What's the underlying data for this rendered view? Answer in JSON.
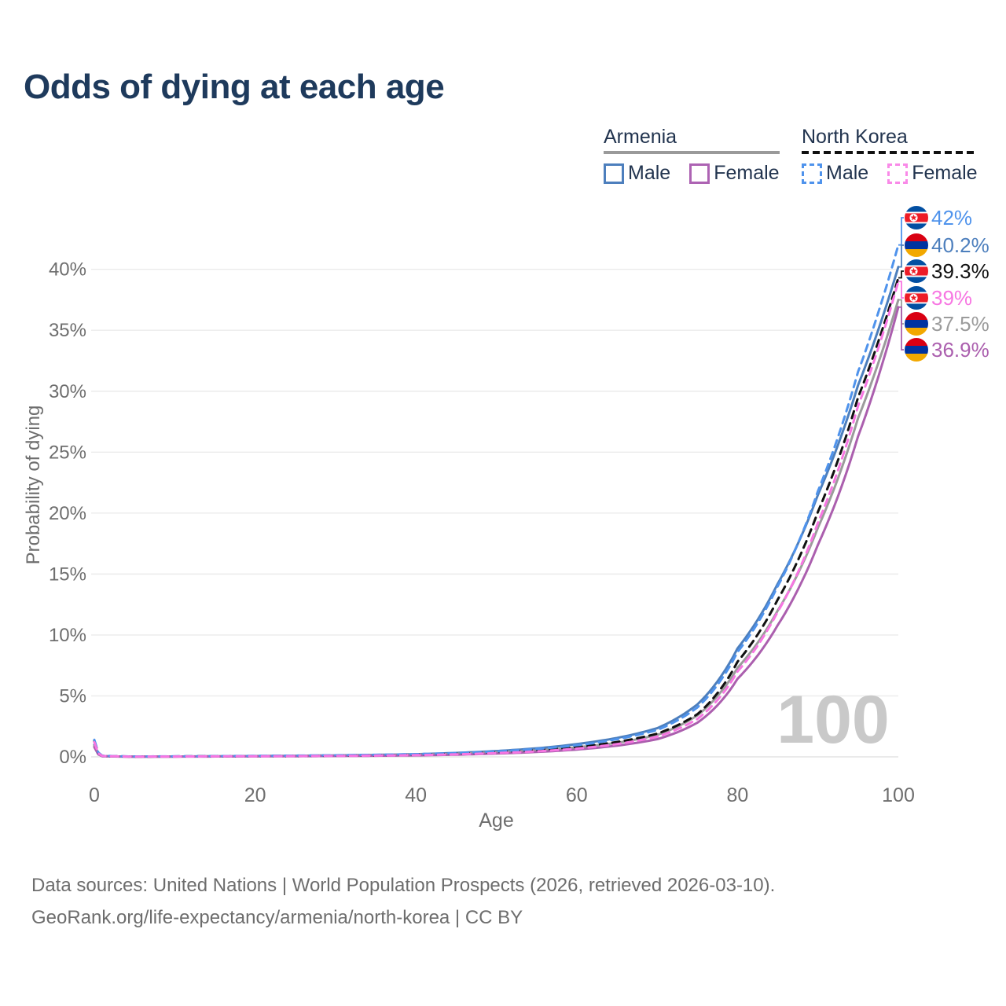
{
  "header": {
    "title": "Odds of dying at each age"
  },
  "legend": {
    "groups": [
      {
        "name": "Armenia",
        "line_style": "solid",
        "line_color": "#9a9a9a",
        "items": [
          {
            "label": "Male",
            "color": "#4d7fbd",
            "style": "solid"
          },
          {
            "label": "Female",
            "color": "#ad63b3",
            "style": "solid"
          }
        ]
      },
      {
        "name": "North Korea",
        "line_style": "dashed",
        "line_color": "#111111",
        "items": [
          {
            "label": "Male",
            "color": "#4f93ec",
            "style": "dashed"
          },
          {
            "label": "Female",
            "color": "#f776e2",
            "style": "dashed"
          }
        ]
      }
    ]
  },
  "chart_data": {
    "type": "line",
    "title": "Odds of dying at each age",
    "xlabel": "Age",
    "ylabel": "Probability of dying",
    "xlim": [
      0,
      100
    ],
    "ylim": [
      0,
      45.6
    ],
    "grid": "horizontal",
    "legend_position": "top-right",
    "hover_age_watermark": "100",
    "x_ticks": [
      {
        "value": 0,
        "label": "0"
      },
      {
        "value": 20,
        "label": "20"
      },
      {
        "value": 40,
        "label": "40"
      },
      {
        "value": 60,
        "label": "60"
      },
      {
        "value": 80,
        "label": "80"
      },
      {
        "value": 100,
        "label": "100"
      }
    ],
    "y_ticks": [
      {
        "value": 0,
        "label": "0%"
      },
      {
        "value": 5,
        "label": "5%"
      },
      {
        "value": 10,
        "label": "10%"
      },
      {
        "value": 15,
        "label": "15%"
      },
      {
        "value": 20,
        "label": "20%"
      },
      {
        "value": 25,
        "label": "25%"
      },
      {
        "value": 30,
        "label": "30%"
      },
      {
        "value": 35,
        "label": "35%"
      },
      {
        "value": 40,
        "label": "40%"
      }
    ],
    "ages": [
      0,
      1,
      5,
      15,
      30,
      40,
      50,
      55,
      60,
      65,
      70,
      75,
      80,
      85,
      90,
      95,
      100
    ],
    "series": [
      {
        "name": "Armenia Male",
        "country": "armenia",
        "sex": "male",
        "color": "#4d7fbd",
        "dash": false,
        "flag": "armenia",
        "end_label": "40.2%",
        "end_value": 40.2,
        "values": [
          1.0,
          0.06,
          0.02,
          0.05,
          0.12,
          0.22,
          0.48,
          0.7,
          1.05,
          1.55,
          2.35,
          4.3,
          8.9,
          14.2,
          21.5,
          30.5,
          40.2
        ]
      },
      {
        "name": "Armenia Both sexes",
        "country": "armenia",
        "sex": "both",
        "color": "#9b9b9b",
        "dash": false,
        "flag": "armenia",
        "end_label": "37.5%",
        "end_value": 37.5,
        "values": [
          0.9,
          0.05,
          0.02,
          0.04,
          0.09,
          0.17,
          0.37,
          0.53,
          0.78,
          1.15,
          1.8,
          3.4,
          7.3,
          12.0,
          18.8,
          27.8,
          37.5
        ]
      },
      {
        "name": "Armenia Female",
        "country": "armenia",
        "sex": "female",
        "color": "#ab5fae",
        "dash": false,
        "flag": "armenia",
        "end_label": "36.9%",
        "end_value": 36.9,
        "values": [
          0.8,
          0.05,
          0.015,
          0.03,
          0.07,
          0.12,
          0.27,
          0.4,
          0.6,
          0.92,
          1.45,
          2.8,
          6.4,
          10.8,
          17.4,
          26.3,
          36.9
        ]
      },
      {
        "name": "North Korea Both sexes",
        "country": "north-korea",
        "sex": "both",
        "color": "#111111",
        "dash": true,
        "flag": "north-korea",
        "end_label": "39.3%",
        "end_value": 39.3,
        "values": [
          1.3,
          0.08,
          0.025,
          0.05,
          0.1,
          0.18,
          0.38,
          0.55,
          0.8,
          1.22,
          1.9,
          3.5,
          7.8,
          12.9,
          20.1,
          29.5,
          39.3
        ]
      },
      {
        "name": "North Korea Male",
        "country": "north-korea",
        "sex": "male",
        "color": "#4f93ec",
        "dash": true,
        "flag": "north-korea",
        "end_label": "42%",
        "end_value": 42.0,
        "values": [
          1.4,
          0.09,
          0.03,
          0.06,
          0.13,
          0.22,
          0.45,
          0.65,
          0.95,
          1.45,
          2.2,
          4.05,
          8.6,
          14.0,
          21.8,
          31.6,
          42.0
        ]
      },
      {
        "name": "North Korea Female",
        "country": "north-korea",
        "sex": "female",
        "color": "#f776e2",
        "dash": true,
        "flag": "north-korea",
        "end_label": "39%",
        "end_value": 39.0,
        "values": [
          1.2,
          0.07,
          0.02,
          0.04,
          0.08,
          0.14,
          0.31,
          0.45,
          0.68,
          1.05,
          1.65,
          3.1,
          7.0,
          11.9,
          19.2,
          28.8,
          39.0
        ]
      }
    ]
  },
  "footer": {
    "line1": "Data sources: United Nations | World Population Prospects (2026, retrieved 2026-03-10).",
    "line2": "GeoRank.org/life-expectancy/armenia/north-korea | CC BY"
  }
}
